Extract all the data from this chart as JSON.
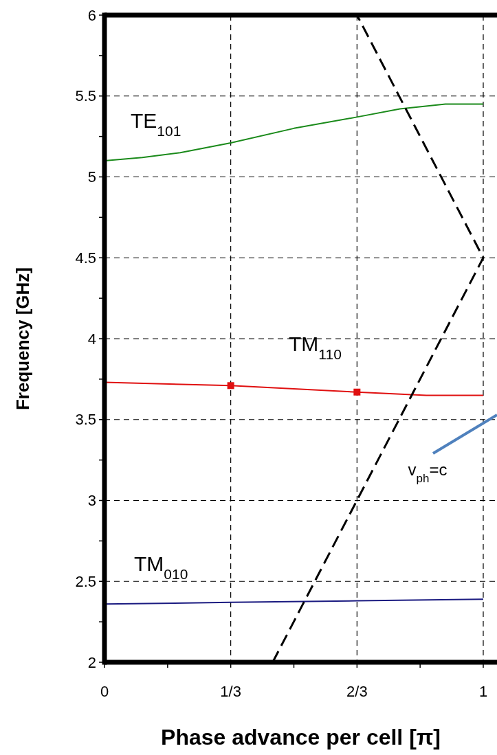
{
  "chart_data": {
    "type": "line",
    "xlabel": "Phase advance per cell [π]",
    "ylabel": "Frequency [GHz]",
    "xlim": [
      0,
      1
    ],
    "ylim": [
      2,
      6
    ],
    "xticks": [
      0,
      {
        "value": 0.1667,
        "label": null
      },
      {
        "value": 0.3333,
        "label": "1/3"
      },
      {
        "value": 0.5,
        "label": null
      },
      {
        "value": 0.6667,
        "label": "2/3"
      },
      {
        "value": 0.8333,
        "label": null
      },
      1
    ],
    "yticks": [
      2,
      {
        "value": 2.25,
        "label": null
      },
      2.5,
      {
        "value": 2.75,
        "label": null
      },
      3,
      {
        "value": 3.25,
        "label": null
      },
      3.5,
      {
        "value": 3.75,
        "label": null
      },
      4,
      {
        "value": 4.25,
        "label": null
      },
      4.5,
      {
        "value": 4.75,
        "label": null
      },
      5,
      {
        "value": 5.25,
        "label": null
      },
      5.5,
      {
        "value": 5.75,
        "label": null
      },
      6
    ],
    "grid": true,
    "series": [
      {
        "name": "TE$_{101}$",
        "color": "#1a8a1a",
        "x": [
          0,
          0.1,
          0.2,
          0.3333,
          0.5,
          0.6667,
          0.78,
          0.9,
          1
        ],
        "values": [
          5.1,
          5.12,
          5.15,
          5.21,
          5.3,
          5.37,
          5.42,
          5.45,
          5.45
        ]
      },
      {
        "name": "TM$_{110}$",
        "color": "#e01010",
        "x": [
          0,
          0.3333,
          0.6667,
          0.85,
          1
        ],
        "values": [
          3.73,
          3.71,
          3.67,
          3.65,
          3.65
        ]
      },
      {
        "type": "scatter",
        "color": "#e01010",
        "marker": "square",
        "x": [
          0.3333,
          0.6667
        ],
        "values": [
          3.71,
          3.67
        ]
      },
      {
        "name": "TM$_{010}$",
        "color": "#1a1a80",
        "x": [
          0,
          0.3333,
          0.6667,
          1
        ],
        "values": [
          2.36,
          2.37,
          2.38,
          2.39
        ]
      },
      {
        "color": "#000000",
        "line_style": "dashed",
        "x": [
          0.444,
          1,
          0.6667
        ],
        "values": [
          2,
          4.5,
          6
        ]
      }
    ],
    "annotations": [
      "v$_{ph}$=c"
    ]
  }
}
